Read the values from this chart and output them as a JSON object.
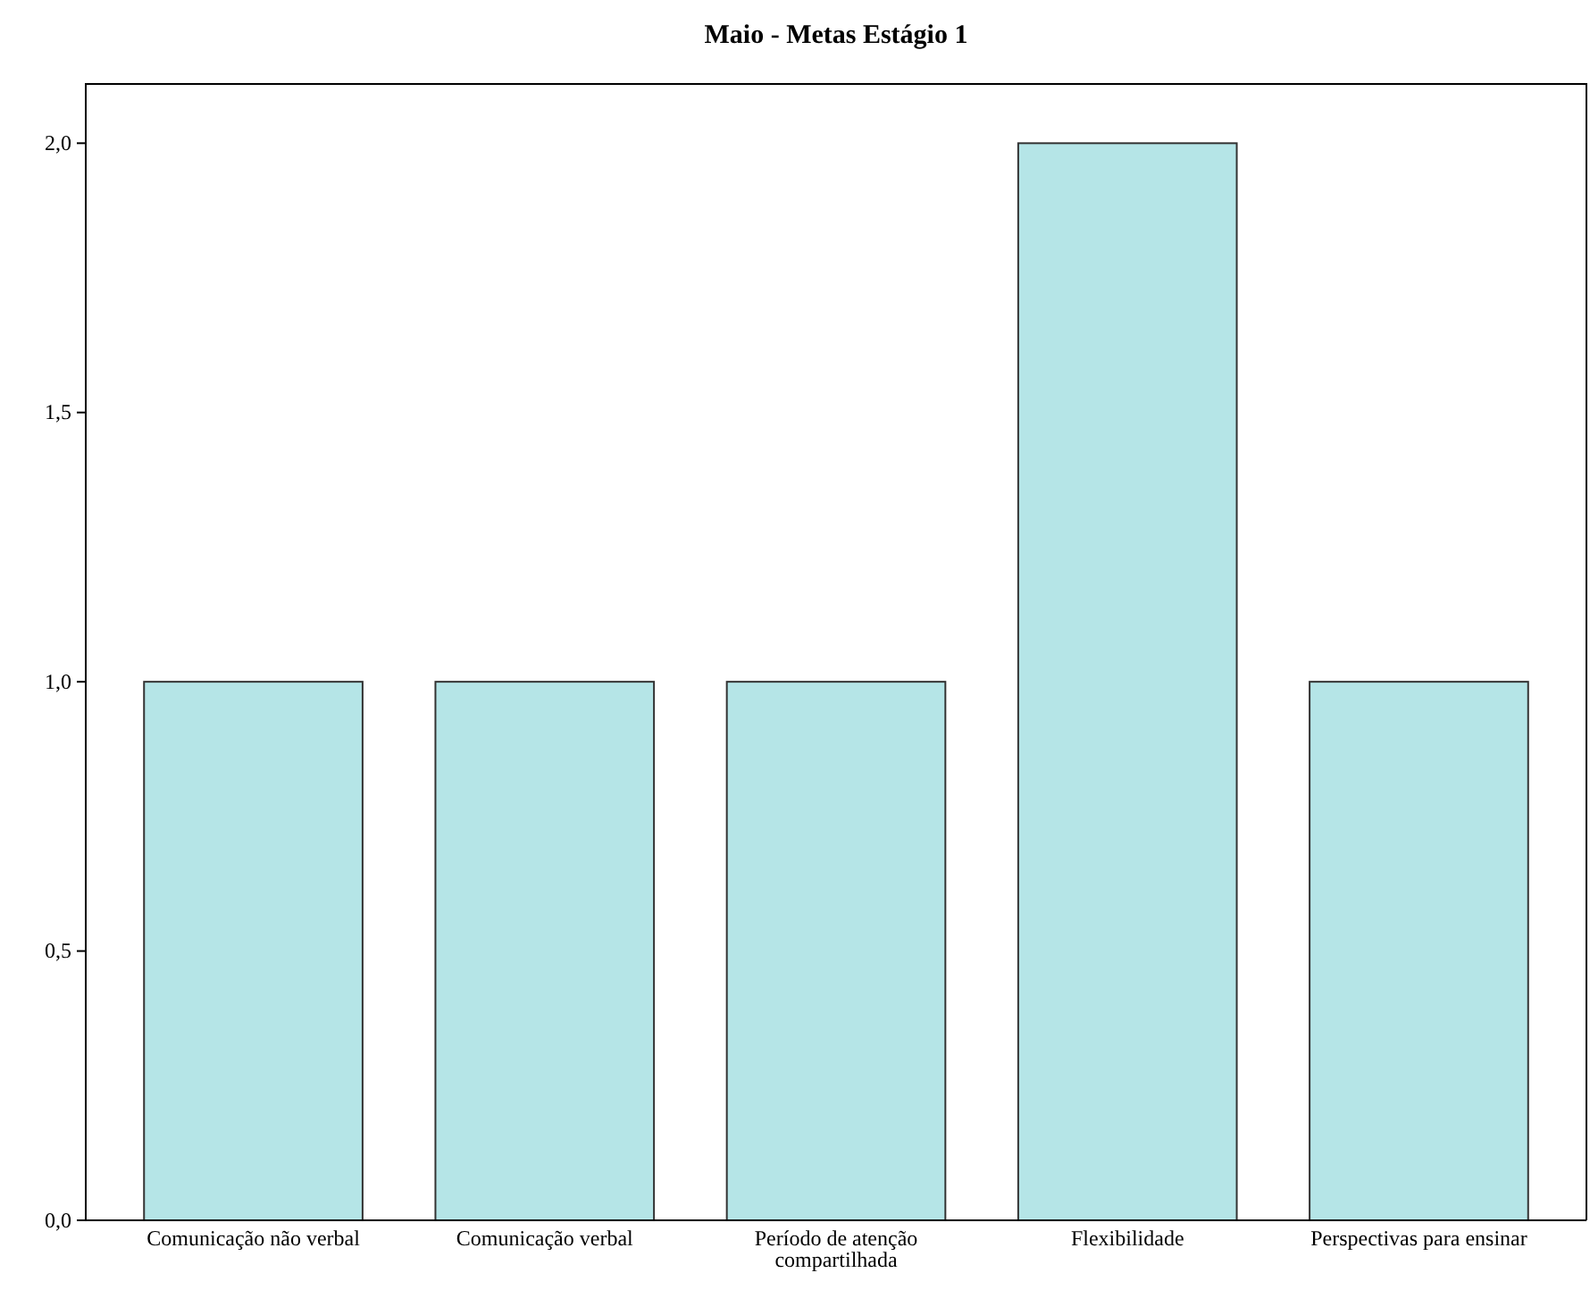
{
  "chart_data": {
    "type": "bar",
    "title": "Maio - Metas Estágio 1",
    "categories": [
      "Comunicação não verbal",
      "Comunicação verbal",
      "Período de atenção compartilhada",
      "Flexibilidade",
      "Perspectivas para ensinar"
    ],
    "values": [
      1,
      1,
      1,
      2,
      1
    ],
    "color": "#b5e5e7",
    "ylim": [
      0,
      2.11
    ],
    "yticks": [
      {
        "value": 0,
        "label": "0,0"
      },
      {
        "value": 0.5,
        "label": "0,5"
      },
      {
        "value": 1,
        "label": "1,0"
      },
      {
        "value": 1.5,
        "label": "1,5"
      },
      {
        "value": 2,
        "label": "2,0"
      }
    ],
    "grid": false
  }
}
